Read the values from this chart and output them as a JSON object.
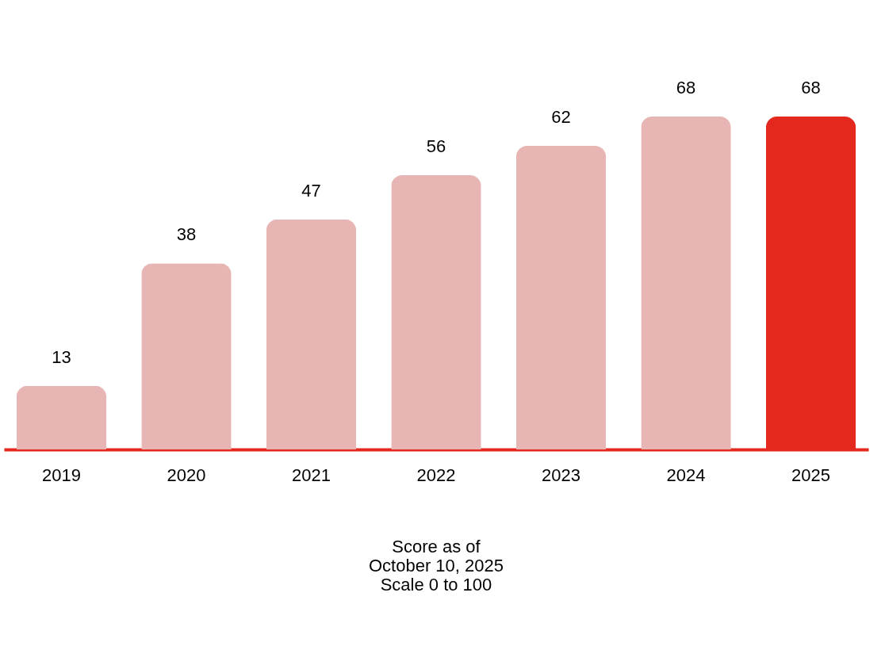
{
  "chart_data": {
    "type": "bar",
    "categories": [
      "2019",
      "2020",
      "2021",
      "2022",
      "2023",
      "2024",
      "2025"
    ],
    "values": [
      13,
      38,
      47,
      56,
      62,
      68,
      68
    ],
    "colors": [
      "#e8b5b5",
      "#e8b5b5",
      "#e8b5b5",
      "#e8b5b5",
      "#e8b5b5",
      "#e8b5b5",
      "#e5281e"
    ],
    "data_labels": true,
    "grid": false,
    "annotations": [
      "Score as of",
      "October 10, 2025",
      "Scale 0 to 100"
    ]
  }
}
